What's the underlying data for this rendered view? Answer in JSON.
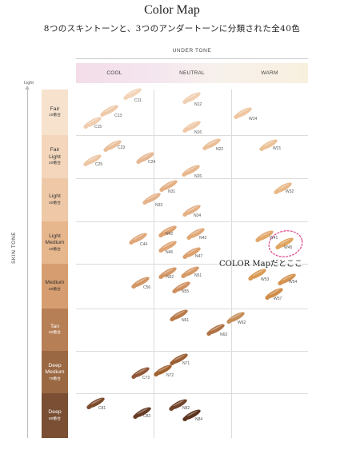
{
  "title": "Color Map",
  "subtitle": "8つのスキントーンと、3つのアンダートーンに分類された全40色",
  "under_tone": {
    "label": "UNDER TONE",
    "columns": [
      "COOL",
      "NEUTRAL",
      "WARM"
    ]
  },
  "skin_tone": {
    "label": "SKIN TONE",
    "light_label": "Light",
    "rows": [
      {
        "name": "Fair",
        "sub": "10番台",
        "color": "#f6e2cd"
      },
      {
        "name": "Fair\nLight",
        "sub": "20番台",
        "color": "#f3d6bb"
      },
      {
        "name": "Light",
        "sub": "30番台",
        "color": "#efc9a7"
      },
      {
        "name": "Light\nMedium",
        "sub": "40番台",
        "color": "#e6b68d"
      },
      {
        "name": "Medium",
        "sub": "50番台",
        "color": "#d69e70"
      },
      {
        "name": "Tan",
        "sub": "60番台",
        "color": "#b77f55"
      },
      {
        "name": "Deep\nMedium",
        "sub": "70番台",
        "color": "#9a6843"
      },
      {
        "name": "Deep",
        "sub": "80番台",
        "color": "#7a4f33"
      }
    ]
  },
  "shades": [
    {
      "code": "C11",
      "color": "#f3d4b8"
    },
    {
      "code": "C13",
      "color": "#efcaa9"
    },
    {
      "code": "C15",
      "color": "#f0cdb0"
    },
    {
      "code": "N12",
      "color": "#f1cfb2"
    },
    {
      "code": "N16",
      "color": "#efc8a6"
    },
    {
      "code": "W14",
      "color": "#efc6a0"
    },
    {
      "code": "C23",
      "color": "#eac09b"
    },
    {
      "code": "C25",
      "color": "#edc6a3"
    },
    {
      "code": "C24",
      "color": "#e6b792"
    },
    {
      "code": "N22",
      "color": "#eabf98"
    },
    {
      "code": "N26",
      "color": "#e7b78e"
    },
    {
      "code": "W21",
      "color": "#ebc197"
    },
    {
      "code": "N31",
      "color": "#e3b084"
    },
    {
      "code": "N33",
      "color": "#e5b38a"
    },
    {
      "code": "N34",
      "color": "#e4b086"
    },
    {
      "code": "W32",
      "color": "#e8b887"
    },
    {
      "code": "N42",
      "color": "#dea271"
    },
    {
      "code": "C44",
      "color": "#e0a77a"
    },
    {
      "code": "N43",
      "color": "#e1a878"
    },
    {
      "code": "N46",
      "color": "#dfa473"
    },
    {
      "code": "N47",
      "color": "#dca06d"
    },
    {
      "code": "W41",
      "color": "#e2a769"
    },
    {
      "code": "W45",
      "color": "#e0a45e"
    },
    {
      "code": "N52",
      "color": "#d39664"
    },
    {
      "code": "N51",
      "color": "#d69a68"
    },
    {
      "code": "C56",
      "color": "#d29563"
    },
    {
      "code": "N55",
      "color": "#cf9060"
    },
    {
      "code": "W53",
      "color": "#d99a55"
    },
    {
      "code": "W54",
      "color": "#d49450"
    },
    {
      "code": "W57",
      "color": "#d08d49"
    },
    {
      "code": "N61",
      "color": "#b97a49"
    },
    {
      "code": "W62",
      "color": "#c58e57"
    },
    {
      "code": "N63",
      "color": "#b07243"
    },
    {
      "code": "N71",
      "color": "#9c5f34"
    },
    {
      "code": "C73",
      "color": "#905838"
    },
    {
      "code": "N72",
      "color": "#a0622f"
    },
    {
      "code": "C81",
      "color": "#7c4b2c"
    },
    {
      "code": "N82",
      "color": "#704228"
    },
    {
      "code": "C83",
      "color": "#653b23"
    },
    {
      "code": "N84",
      "color": "#5b321d"
    }
  ],
  "annotation": {
    "text": "COLOR Mapだとここ",
    "highlight_code": "W45",
    "highlight_color": "#e0528f"
  }
}
